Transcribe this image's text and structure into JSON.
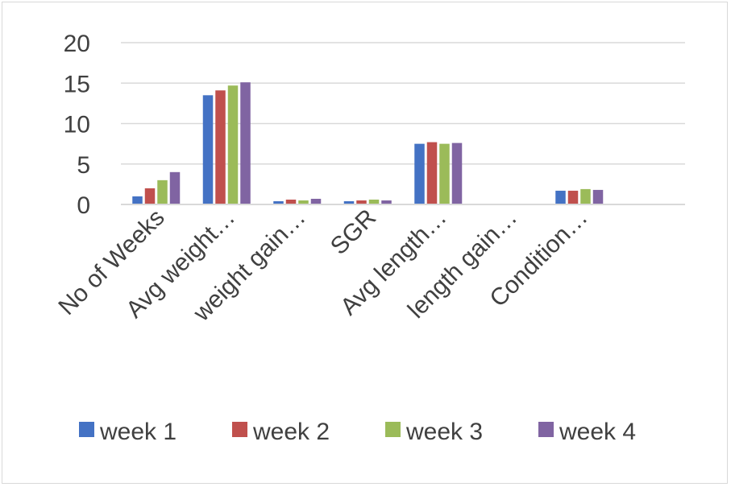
{
  "chart_data": {
    "type": "bar",
    "categories": [
      "No of Weeks",
      "Avg weight…",
      "weight gain…",
      "SGR",
      "Avg length…",
      "length gain…",
      "Condition…"
    ],
    "series": [
      {
        "name": "week 1",
        "color": "#4472C4",
        "values": [
          1,
          13.5,
          0.4,
          0.4,
          7.5,
          0,
          1.7
        ]
      },
      {
        "name": "week 2",
        "color": "#C0504D",
        "values": [
          2,
          14.1,
          0.6,
          0.5,
          7.7,
          0,
          1.7
        ]
      },
      {
        "name": "week 3",
        "color": "#9BBB59",
        "values": [
          3,
          14.7,
          0.5,
          0.6,
          7.5,
          0,
          1.9
        ]
      },
      {
        "name": "week 4",
        "color": "#8064A2",
        "values": [
          4,
          15.1,
          0.7,
          0.5,
          7.6,
          0,
          1.8
        ]
      }
    ],
    "yticks": [
      "0",
      "5",
      "10",
      "15",
      "20"
    ],
    "ylim": [
      0,
      20
    ],
    "grid": true,
    "legend_position": "bottom"
  }
}
